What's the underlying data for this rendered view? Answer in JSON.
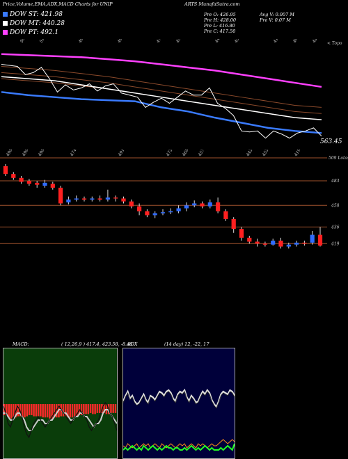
{
  "header": {
    "title": "Price,Volume,EMA,ADX,MACD Charts for UNIP",
    "site": "ARTS MunafaSutra.com"
  },
  "dow": [
    {
      "label": "DOW ST: 421.98",
      "color": "#3a7bff"
    },
    {
      "label": "DOW MT: 440.28",
      "color": "#ffffff"
    },
    {
      "label": "DOW PT: 492.1",
      "color": "#ff40ff"
    }
  ],
  "ohlc": {
    "col1": [
      "Pre  O: 426.95",
      "Pre  H: 428.00",
      "Pre  L: 416.80",
      "Pre  C: 417.50"
    ],
    "col2": [
      "Avg V: 0.007 M",
      "Pre  V: 0.07 M"
    ]
  },
  "ema_panel": {
    "top_labels": [
      "503",
      "513",
      "",
      "498",
      "",
      "491",
      "",
      "474",
      "458",
      "",
      "442",
      "451",
      "",
      "415",
      "409",
      "425"
    ],
    "right_label": "563.45",
    "right_top_label": "< Topo"
  },
  "price_panel": {
    "top_labels": [
      "498",
      "496",
      "498",
      "",
      "474",
      "",
      "",
      "491",
      "",
      "",
      "472",
      "468",
      "457",
      "",
      "",
      "442",
      "452",
      "",
      "419"
    ],
    "right_top_label": "509 Lotas",
    "level_labels": [
      "483",
      "458",
      "436",
      "419"
    ]
  },
  "macd": {
    "title": "MACD:",
    "values": "( 12,26,9 ) 417.4, 423.58, -8.48"
  },
  "adx": {
    "title": "ADX",
    "values": "(14 day) 12, -22, 17"
  },
  "chart_data": {
    "type": "candlestick",
    "ema_lines": [
      {
        "name": "DOW PT",
        "color": "#ff40ff",
        "values": [
          492,
          491,
          490,
          489,
          487,
          485,
          482,
          479,
          476,
          472,
          468,
          464,
          460
        ]
      },
      {
        "name": "DOW MT",
        "color": "#ffffff",
        "values": [
          470,
          468,
          466,
          462,
          458,
          454,
          450,
          446,
          442,
          438,
          434,
          430,
          428
        ]
      },
      {
        "name": "DOW ST",
        "color": "#3a7bff",
        "values": [
          455,
          452,
          450,
          448,
          447,
          446,
          440,
          436,
          430,
          425,
          420,
          417,
          415
        ]
      }
    ],
    "candles": [
      {
        "o": 498,
        "c": 490,
        "h": 500,
        "l": 488
      },
      {
        "o": 490,
        "c": 486,
        "h": 492,
        "l": 484
      },
      {
        "o": 486,
        "c": 482,
        "h": 488,
        "l": 480
      },
      {
        "o": 483,
        "c": 480,
        "h": 485,
        "l": 478
      },
      {
        "o": 481,
        "c": 479,
        "h": 483,
        "l": 476
      },
      {
        "o": 478,
        "c": 481,
        "h": 484,
        "l": 476
      },
      {
        "o": 480,
        "c": 476,
        "h": 482,
        "l": 474
      },
      {
        "o": 476,
        "c": 460,
        "h": 478,
        "l": 458
      },
      {
        "o": 461,
        "c": 464,
        "h": 467,
        "l": 459
      },
      {
        "o": 464,
        "c": 465,
        "h": 468,
        "l": 462
      },
      {
        "o": 465,
        "c": 464,
        "h": 467,
        "l": 462
      },
      {
        "o": 464,
        "c": 465,
        "h": 467,
        "l": 462
      },
      {
        "o": 465,
        "c": 464,
        "h": 468,
        "l": 462
      },
      {
        "o": 464,
        "c": 466,
        "h": 474,
        "l": 462
      },
      {
        "o": 466,
        "c": 465,
        "h": 468,
        "l": 462
      },
      {
        "o": 465,
        "c": 462,
        "h": 467,
        "l": 460
      },
      {
        "o": 462,
        "c": 457,
        "h": 464,
        "l": 455
      },
      {
        "o": 457,
        "c": 452,
        "h": 460,
        "l": 448
      },
      {
        "o": 452,
        "c": 448,
        "h": 454,
        "l": 446
      },
      {
        "o": 448,
        "c": 450,
        "h": 452,
        "l": 445
      },
      {
        "o": 450,
        "c": 451,
        "h": 454,
        "l": 448
      },
      {
        "o": 451,
        "c": 452,
        "h": 455,
        "l": 449
      },
      {
        "o": 452,
        "c": 455,
        "h": 458,
        "l": 450
      },
      {
        "o": 455,
        "c": 458,
        "h": 461,
        "l": 452
      },
      {
        "o": 458,
        "c": 460,
        "h": 463,
        "l": 456
      },
      {
        "o": 460,
        "c": 457,
        "h": 462,
        "l": 455
      },
      {
        "o": 457,
        "c": 461,
        "h": 464,
        "l": 455
      },
      {
        "o": 461,
        "c": 452,
        "h": 466,
        "l": 450
      },
      {
        "o": 452,
        "c": 444,
        "h": 454,
        "l": 442
      },
      {
        "o": 444,
        "c": 434,
        "h": 446,
        "l": 430
      },
      {
        "o": 434,
        "c": 425,
        "h": 436,
        "l": 422
      },
      {
        "o": 425,
        "c": 421,
        "h": 427,
        "l": 419
      },
      {
        "o": 421,
        "c": 419,
        "h": 424,
        "l": 416
      },
      {
        "o": 419,
        "c": 418,
        "h": 421,
        "l": 416
      },
      {
        "o": 418,
        "c": 422,
        "h": 424,
        "l": 417
      },
      {
        "o": 422,
        "c": 416,
        "h": 425,
        "l": 414
      },
      {
        "o": 416,
        "c": 418,
        "h": 420,
        "l": 414
      },
      {
        "o": 418,
        "c": 420,
        "h": 422,
        "l": 416
      },
      {
        "o": 420,
        "c": 419,
        "h": 422,
        "l": 417
      },
      {
        "o": 420,
        "c": 428,
        "h": 432,
        "l": 418
      },
      {
        "o": 428,
        "c": 417,
        "h": 436,
        "l": 416
      }
    ],
    "levels": [
      483,
      458,
      436,
      419
    ],
    "macd_histogram": [
      -10,
      -11,
      -12,
      -13,
      -12,
      -12,
      -11,
      -11,
      -12,
      -12,
      -11,
      -10,
      -10,
      -11,
      -11,
      -11,
      -11,
      -12,
      -12,
      -12,
      -13,
      -13,
      -12,
      -12,
      -12,
      -11,
      -11,
      -11,
      -12,
      -12,
      -12,
      -11,
      -11,
      -10,
      -10,
      -9,
      -9,
      -9,
      -8,
      -9,
      -9,
      -8,
      -8,
      -8,
      -8,
      -9,
      -9,
      -8,
      -8,
      -8
    ],
    "macd_line": [
      3,
      1,
      -2,
      -3,
      -1,
      1,
      3,
      2,
      0,
      -3,
      -5,
      -6,
      -4,
      -2,
      -1,
      0,
      -1,
      -2,
      -3,
      -2,
      -1,
      0,
      1,
      2,
      3,
      2,
      1,
      0,
      -1,
      -2,
      -1,
      0,
      1,
      2,
      1,
      0,
      -1,
      -3,
      -4,
      -3,
      -2,
      -1,
      1,
      3,
      4,
      3,
      1,
      0,
      -2,
      -4
    ],
    "macd_signal": [
      1,
      1,
      0,
      -1,
      -1,
      0,
      1,
      1,
      0,
      -1,
      -3,
      -4,
      -4,
      -3,
      -2,
      -1,
      -1,
      -1,
      -2,
      -2,
      -1,
      -1,
      0,
      1,
      2,
      2,
      1,
      1,
      0,
      -1,
      -1,
      0,
      0,
      1,
      1,
      0,
      0,
      -1,
      -2,
      -3,
      -2,
      -2,
      -1,
      1,
      2,
      2,
      1,
      0,
      -1,
      -2
    ],
    "adx_plus": [
      2,
      3,
      2,
      3,
      4,
      3,
      2,
      3,
      2,
      4,
      3,
      2,
      3,
      4,
      3,
      2,
      3,
      2,
      3,
      4,
      3,
      3,
      2,
      3,
      3,
      2,
      2,
      3,
      2,
      3,
      4,
      3,
      2,
      3,
      2,
      3,
      4,
      3,
      2,
      3,
      2,
      2,
      2,
      3,
      2,
      3,
      4,
      3,
      2,
      5
    ],
    "adx_minus": [
      4,
      3,
      5,
      4,
      3,
      4,
      5,
      3,
      4,
      5,
      4,
      5,
      3,
      4,
      5,
      4,
      3,
      5,
      4,
      3,
      4,
      5,
      4,
      3,
      4,
      5,
      4,
      5,
      3,
      4,
      5,
      4,
      3,
      5,
      4,
      5,
      4,
      3,
      4,
      5,
      4,
      4,
      5,
      6,
      7,
      6,
      5,
      6,
      7,
      6
    ],
    "adx_line": [
      22,
      26,
      29,
      24,
      26,
      22,
      20,
      21,
      24,
      27,
      23,
      21,
      26,
      25,
      23,
      26,
      29,
      28,
      26,
      29,
      30,
      28,
      24,
      22,
      27,
      29,
      28,
      30,
      25,
      22,
      26,
      24,
      21,
      22,
      26,
      29,
      27,
      30,
      28,
      23,
      20,
      18,
      22,
      27,
      29,
      28,
      27,
      30,
      29,
      26
    ]
  }
}
